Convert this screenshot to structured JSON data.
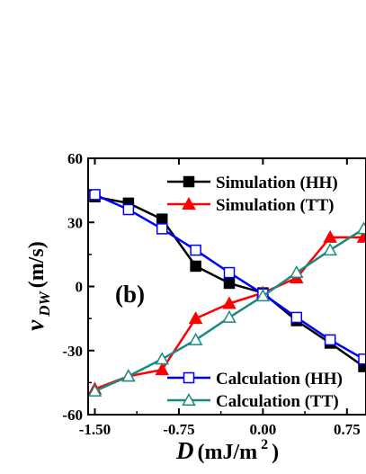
{
  "chart_data": {
    "type": "line",
    "panel_label": "(b)",
    "xlabel": {
      "symbol": "D",
      "unit_open": " (mJ/m",
      "unit_exp": "2",
      "unit_close": ")"
    },
    "ylabel": {
      "symbol": "v",
      "subscript": "DW",
      "unit": " (m/s)"
    },
    "xlim": [
      -1.56,
      0.92
    ],
    "ylim": [
      -60,
      60
    ],
    "xticks": [
      {
        "value": -1.5,
        "label": "-1.50"
      },
      {
        "value": -0.75,
        "label": "-0.75"
      },
      {
        "value": 0.0,
        "label": "0.00"
      },
      {
        "value": 0.75,
        "label": "0.75"
      }
    ],
    "yticks": [
      {
        "value": -60,
        "label": "-60"
      },
      {
        "value": -30,
        "label": "-30"
      },
      {
        "value": 0,
        "label": "0"
      },
      {
        "value": 30,
        "label": "30"
      },
      {
        "value": 60,
        "label": "60"
      }
    ],
    "legend_upper": "top-right",
    "legend_lower": "bottom-right",
    "series": [
      {
        "name": "Simulation (HH)",
        "color": "#000000",
        "marker": "filled-square",
        "legend_group": "upper",
        "x": [
          -1.5,
          -1.2,
          -0.9,
          -0.6,
          -0.3,
          0.0,
          0.3,
          0.6,
          0.9
        ],
        "y": [
          42,
          39,
          31.5,
          9.5,
          1.5,
          -3,
          -16,
          -26.5,
          -37.5
        ]
      },
      {
        "name": "Simulation (TT)",
        "color": "#ff0000",
        "marker": "filled-triangle",
        "legend_group": "upper",
        "x": [
          -1.5,
          -1.2,
          -0.9,
          -0.6,
          -0.3,
          0.0,
          0.3,
          0.6,
          0.9
        ],
        "y": [
          -48,
          -42,
          -39,
          -15,
          -8,
          -3,
          4,
          23,
          23
        ]
      },
      {
        "name": "Calculation (HH)",
        "color": "#0000ff",
        "marker": "open-square",
        "legend_group": "lower",
        "x": [
          -1.5,
          -1.2,
          -0.9,
          -0.6,
          -0.3,
          0.0,
          0.3,
          0.6,
          0.9
        ],
        "y": [
          43,
          36,
          27,
          17,
          6.5,
          -3.5,
          -14.5,
          -25,
          -34
        ]
      },
      {
        "name": "Calculation (TT)",
        "color": "#1a8a80",
        "marker": "open-triangle",
        "legend_group": "lower",
        "x": [
          -1.5,
          -1.2,
          -0.9,
          -0.6,
          -0.3,
          0.0,
          0.3,
          0.6,
          0.9
        ],
        "y": [
          -49,
          -42,
          -34,
          -25,
          -14.5,
          -4.5,
          6.5,
          17,
          27
        ]
      }
    ]
  }
}
